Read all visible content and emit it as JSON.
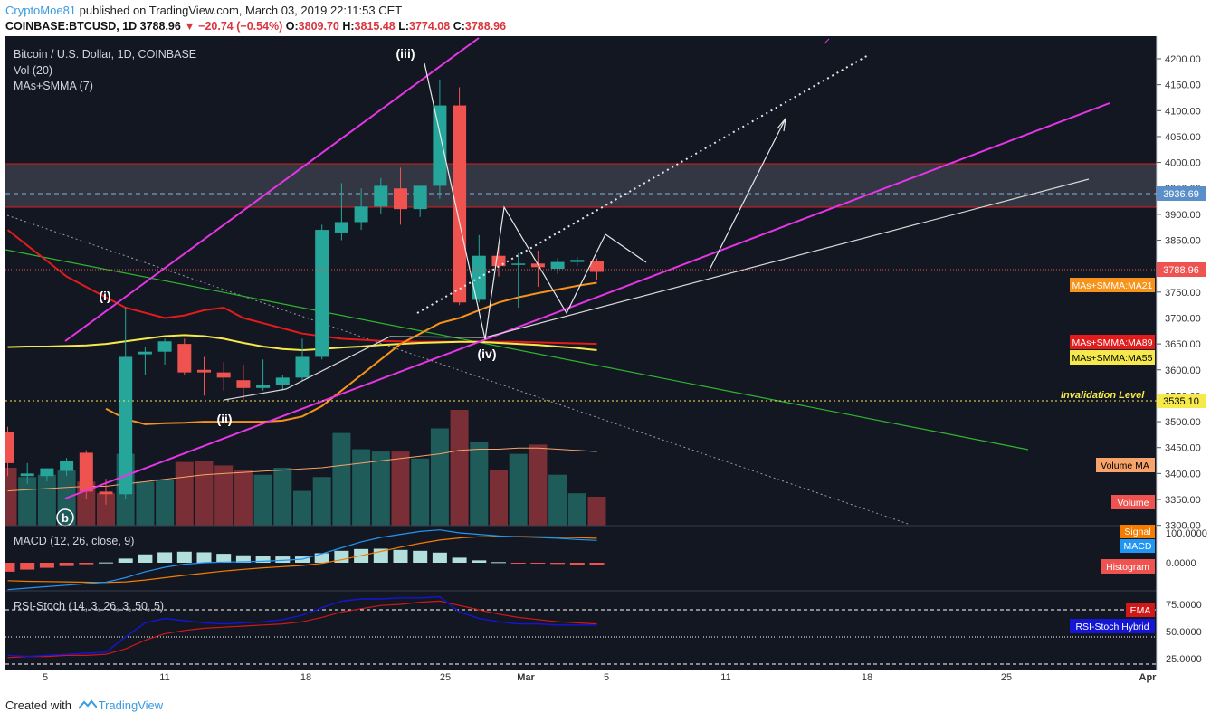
{
  "header": {
    "author": "CryptoMoe81",
    "published_text": "published on TradingView.com, March 03, 2019 22:11:53 CET",
    "symbol": "COINBASE:BTCUSD, 1D",
    "last": "3788.96",
    "change": "−20.74 (−0.54%)",
    "o_label": "O:",
    "o": "3809.70",
    "h_label": "H:",
    "h": "3815.48",
    "l_label": "L:",
    "l": "3774.08",
    "c_label": "C:",
    "c": "3788.96"
  },
  "legend": {
    "title": "Bitcoin / U.S. Dollar, 1D, COINBASE",
    "vol": "Vol (20)",
    "ma": "MAs+SMMA (7)",
    "macd": "MACD (12, 26, close, 9)",
    "rsi": "RSI-Stoch (14, 3, 26, 3, 50, 5)"
  },
  "footer": {
    "created": "Created with",
    "brand": "TradingView"
  },
  "colors": {
    "background": "#131722",
    "up": "#26a69a",
    "down": "#ef5350",
    "magenta": "#e535e5",
    "ma21": "#f7931a",
    "ma55": "#f5e94c",
    "ma89": "#e31b1b",
    "green_line": "#31b531",
    "macd": "#2196f3",
    "signal": "#f57c00",
    "rsi_hybrid": "#1515d6",
    "rsi_ema": "#d01818"
  },
  "chart_data": {
    "type": "candlestick",
    "price_axis": {
      "ticks": [
        3300,
        3350,
        3400,
        3450,
        3500,
        3550,
        3600,
        3650,
        3700,
        3750,
        3800,
        3850,
        3900,
        3950,
        4000,
        4050,
        4100,
        4150,
        4200
      ],
      "min": 3290,
      "max": 4225
    },
    "x_labels": [
      "5",
      "11",
      "18",
      "25",
      "Mar",
      "5",
      "11",
      "18",
      "25",
      "Apr"
    ],
    "candles": [
      {
        "o": 3480,
        "h": 3490,
        "l": 3395,
        "c": 3420
      },
      {
        "o": 3395,
        "h": 3420,
        "l": 3380,
        "c": 3400
      },
      {
        "o": 3395,
        "h": 3410,
        "l": 3385,
        "c": 3410
      },
      {
        "o": 3405,
        "h": 3430,
        "l": 3395,
        "c": 3425
      },
      {
        "o": 3440,
        "h": 3445,
        "l": 3350,
        "c": 3365
      },
      {
        "o": 3365,
        "h": 3390,
        "l": 3340,
        "c": 3360
      },
      {
        "o": 3360,
        "h": 3720,
        "l": 3350,
        "c": 3625
      },
      {
        "o": 3630,
        "h": 3645,
        "l": 3590,
        "c": 3635
      },
      {
        "o": 3635,
        "h": 3660,
        "l": 3610,
        "c": 3655
      },
      {
        "o": 3650,
        "h": 3660,
        "l": 3590,
        "c": 3595
      },
      {
        "o": 3600,
        "h": 3625,
        "l": 3550,
        "c": 3595
      },
      {
        "o": 3595,
        "h": 3615,
        "l": 3560,
        "c": 3585
      },
      {
        "o": 3580,
        "h": 3610,
        "l": 3540,
        "c": 3565
      },
      {
        "o": 3565,
        "h": 3620,
        "l": 3560,
        "c": 3570
      },
      {
        "o": 3570,
        "h": 3590,
        "l": 3560,
        "c": 3585
      },
      {
        "o": 3585,
        "h": 3660,
        "l": 3580,
        "c": 3625
      },
      {
        "o": 3625,
        "h": 3880,
        "l": 3620,
        "c": 3870
      },
      {
        "o": 3865,
        "h": 3960,
        "l": 3850,
        "c": 3885
      },
      {
        "o": 3885,
        "h": 3950,
        "l": 3870,
        "c": 3915
      },
      {
        "o": 3915,
        "h": 3970,
        "l": 3900,
        "c": 3955
      },
      {
        "o": 3950,
        "h": 3990,
        "l": 3880,
        "c": 3910
      },
      {
        "o": 3910,
        "h": 3955,
        "l": 3895,
        "c": 3955
      },
      {
        "o": 3955,
        "h": 4160,
        "l": 3930,
        "c": 4110
      },
      {
        "o": 4110,
        "h": 4145,
        "l": 3725,
        "c": 3730
      },
      {
        "o": 3735,
        "h": 3860,
        "l": 3730,
        "c": 3820
      },
      {
        "o": 3820,
        "h": 3840,
        "l": 3780,
        "c": 3800
      },
      {
        "o": 3805,
        "h": 3825,
        "l": 3720,
        "c": 3805
      },
      {
        "o": 3805,
        "h": 3830,
        "l": 3760,
        "c": 3798
      },
      {
        "o": 3795,
        "h": 3815,
        "l": 3785,
        "c": 3808
      },
      {
        "o": 3808,
        "h": 3818,
        "l": 3800,
        "c": 3812
      },
      {
        "o": 3810,
        "h": 3815,
        "l": 3774,
        "c": 3789
      }
    ],
    "volume": [
      50,
      42,
      44,
      48,
      38,
      28,
      62,
      38,
      40,
      55,
      56,
      52,
      48,
      44,
      50,
      30,
      42,
      80,
      66,
      64,
      64,
      58,
      84,
      100,
      72,
      48,
      62,
      70,
      44,
      28,
      25
    ],
    "volume_ma": [
      30,
      31,
      32,
      33,
      34,
      34,
      36,
      38,
      40,
      42,
      44,
      45,
      46,
      47,
      48,
      49,
      50,
      52,
      54,
      56,
      58,
      60,
      62,
      65,
      66,
      66,
      67,
      67,
      66,
      65,
      64
    ],
    "ma21": [
      null,
      null,
      null,
      null,
      null,
      3525,
      3505,
      3495,
      3497,
      3498,
      3500,
      3500,
      3500,
      3500,
      3502,
      3510,
      3530,
      3560,
      3590,
      3620,
      3650,
      3670,
      3690,
      3700,
      3715,
      3730,
      3740,
      3748,
      3755,
      3762,
      3768
    ],
    "ma55": [
      3644,
      3645,
      3645,
      3646,
      3647,
      3650,
      3655,
      3660,
      3665,
      3667,
      3665,
      3660,
      3652,
      3645,
      3640,
      3638,
      3640,
      3643,
      3645,
      3648,
      3650,
      3652,
      3653,
      3654,
      3654,
      3652,
      3650,
      3648,
      3645,
      3642,
      3638
    ],
    "ma89": [
      3870,
      3840,
      3810,
      3780,
      3760,
      3740,
      3720,
      3710,
      3700,
      3705,
      3715,
      3720,
      3700,
      3690,
      3680,
      3670,
      3665,
      3660,
      3658,
      3656,
      3655,
      3654,
      3654,
      3654,
      3654,
      3654,
      3654,
      3653,
      3652,
      3651,
      3650
    ],
    "macd": {
      "axis_ticks": [
        100,
        0
      ],
      "macd": [
        -90,
        -85,
        -80,
        -75,
        -70,
        -65,
        -50,
        -30,
        -15,
        -5,
        0,
        2,
        3,
        5,
        8,
        12,
        30,
        50,
        70,
        85,
        95,
        105,
        110,
        100,
        95,
        90,
        87,
        85,
        82,
        78,
        75
      ],
      "signal": [
        -60,
        -62,
        -63,
        -64,
        -65,
        -66,
        -64,
        -58,
        -50,
        -42,
        -35,
        -28,
        -22,
        -17,
        -13,
        -9,
        -2,
        10,
        24,
        38,
        52,
        65,
        76,
        83,
        87,
        88,
        88,
        87,
        86,
        84,
        82
      ],
      "histogram": [
        -30,
        -23,
        -17,
        -11,
        -5,
        1,
        14,
        28,
        35,
        37,
        35,
        30,
        25,
        22,
        21,
        21,
        32,
        40,
        46,
        47,
        43,
        40,
        34,
        17,
        8,
        2,
        -1,
        -2,
        -4,
        -6,
        -7
      ]
    },
    "rsi_stoch": {
      "axis_ticks": [
        75,
        50,
        25
      ],
      "hybrid": [
        28,
        27,
        28,
        29,
        30,
        31,
        45,
        58,
        62,
        60,
        58,
        57,
        58,
        59,
        61,
        65,
        72,
        78,
        80,
        80,
        81,
        81,
        82,
        68,
        62,
        59,
        57,
        57,
        56,
        56,
        56
      ],
      "ema": [
        26,
        27,
        27,
        28,
        28,
        29,
        34,
        42,
        48,
        51,
        53,
        54,
        55,
        56,
        57,
        59,
        63,
        68,
        71,
        74,
        75,
        77,
        78,
        74,
        70,
        66,
        63,
        61,
        59,
        58,
        57
      ]
    }
  },
  "annotations": {
    "wave_iii": "(iii)",
    "wave_i": "(i)",
    "wave_ii": "(ii)",
    "wave_iv": "(iv)",
    "wave_b": "b",
    "invalidation": "Invalidation Level"
  },
  "tags": {
    "resistance": "3936.69",
    "last_price": "3788.96",
    "invalidation_price": "3535.10",
    "ma21": "MAs+SMMA:MA21",
    "ma89": "MAs+SMMA:MA89",
    "ma55": "MAs+SMMA:MA55",
    "volume_ma": "Volume MA",
    "volume": "Volume",
    "signal": "Signal",
    "macd": "MACD",
    "histogram": "Histogram",
    "ema": "EMA",
    "rsi_hybrid": "RSI-Stoch Hybrid"
  },
  "macd_ticks_text": [
    "100.0000",
    "0.0000"
  ],
  "rsi_ticks_text": [
    "75.0000",
    "50.0000",
    "25.0000"
  ]
}
